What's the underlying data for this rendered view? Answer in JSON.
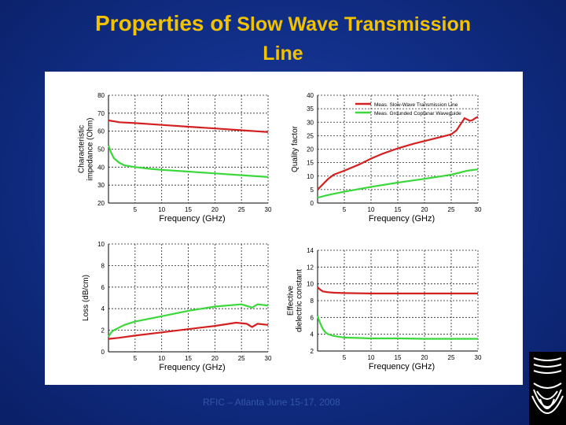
{
  "slide": {
    "title_part1": "Properties of",
    "title_part2": "Slow Wave Transmission",
    "title_line2": "Line",
    "footer": "RFIC – Atlanta June 15-17, 2008",
    "title_color": "#f2c200",
    "logo_icon": "wave-pattern-logo-icon"
  },
  "chart_data": [
    {
      "id": "impedance",
      "type": "line",
      "title": "",
      "xlabel": "Frequency (GHz)",
      "ylabel": "Characteristic impedance (Ohm)",
      "xlim": [
        0,
        30
      ],
      "ylim": [
        20,
        80
      ],
      "xticks": [
        5,
        10,
        15,
        20,
        25,
        30
      ],
      "yticks": [
        20,
        30,
        40,
        50,
        60,
        70,
        80
      ],
      "xtick_labels": [
        "5",
        "10",
        "15",
        "20",
        "25",
        "30"
      ],
      "ytick_labels": [
        "20",
        "30",
        "40",
        "50",
        "60",
        "70",
        "80"
      ],
      "grid": true,
      "series": [
        {
          "name": "Meas. Slow-Wave Transmission Line",
          "color": "#d42020",
          "x": [
            0,
            1,
            2,
            5,
            10,
            15,
            20,
            25,
            30
          ],
          "y": [
            66,
            65.5,
            65,
            64.5,
            63.5,
            62.5,
            61.5,
            60.5,
            59.5
          ]
        },
        {
          "name": "Meas. Grounded Coplanar Waveguide",
          "color": "#3bd83b",
          "x": [
            0,
            0.5,
            1,
            2,
            3,
            5,
            8,
            10,
            15,
            20,
            25,
            30
          ],
          "y": [
            52,
            48,
            45,
            42.5,
            41,
            40,
            39,
            38.5,
            37.5,
            36.5,
            35.5,
            34.5
          ]
        }
      ]
    },
    {
      "id": "quality",
      "type": "line",
      "title": "",
      "xlabel": "Frequency (GHz)",
      "ylabel": "Quality factor",
      "xlim": [
        0,
        30
      ],
      "ylim": [
        0,
        40
      ],
      "xticks": [
        5,
        10,
        15,
        20,
        25,
        30
      ],
      "yticks": [
        0,
        5,
        10,
        15,
        20,
        25,
        30,
        35,
        40
      ],
      "xtick_labels": [
        "5",
        "10",
        "15",
        "20",
        "25",
        "30"
      ],
      "ytick_labels": [
        "0",
        "5",
        "10",
        "15",
        "20",
        "25",
        "30",
        "35",
        "40"
      ],
      "grid": true,
      "legend": "top-right",
      "series": [
        {
          "name": "Meas. Slow-Wave Transmission Line",
          "color": "#d42020",
          "x": [
            0,
            1,
            2,
            3,
            5,
            8,
            10,
            12,
            15,
            18,
            20,
            22,
            24,
            25,
            26,
            27,
            27.5,
            28,
            28.5,
            29,
            29.5,
            30
          ],
          "y": [
            5,
            7,
            9,
            10.5,
            12,
            14.5,
            16.5,
            18.2,
            20.3,
            22,
            23,
            24,
            25,
            25.5,
            27,
            30,
            31.5,
            31,
            30.5,
            30.8,
            31.5,
            32
          ]
        },
        {
          "name": "Meas. Grounded Coplanar Waveguide",
          "color": "#3bd83b",
          "x": [
            0,
            2,
            5,
            10,
            15,
            20,
            25,
            28,
            30
          ],
          "y": [
            2,
            3,
            4.2,
            6,
            7.6,
            9,
            10.5,
            12,
            12.5
          ]
        }
      ]
    },
    {
      "id": "loss",
      "type": "line",
      "title": "",
      "xlabel": "Frequency (GHz)",
      "ylabel": "Loss (dB/cm)",
      "xlim": [
        0,
        30
      ],
      "ylim": [
        0,
        10
      ],
      "xticks": [
        5,
        10,
        15,
        20,
        25,
        30
      ],
      "yticks": [
        0,
        2,
        4,
        6,
        8,
        10
      ],
      "xtick_labels": [
        "5",
        "10",
        "15",
        "20",
        "25",
        "30"
      ],
      "ytick_labels": [
        "0",
        "2",
        "4",
        "6",
        "8",
        "10"
      ],
      "grid": true,
      "series": [
        {
          "name": "Meas. Slow-Wave Transmission Line",
          "color": "#d42020",
          "x": [
            0,
            2,
            5,
            10,
            15,
            20,
            24,
            26,
            27,
            28,
            30
          ],
          "y": [
            1.2,
            1.3,
            1.5,
            1.8,
            2.1,
            2.4,
            2.7,
            2.6,
            2.3,
            2.6,
            2.5
          ]
        },
        {
          "name": "Meas. Grounded Coplanar Waveguide",
          "color": "#3bd83b",
          "x": [
            0,
            0.5,
            1,
            3,
            5,
            10,
            15,
            20,
            25,
            27,
            28,
            30
          ],
          "y": [
            1.4,
            1.8,
            2.0,
            2.5,
            2.8,
            3.3,
            3.8,
            4.2,
            4.4,
            4.1,
            4.4,
            4.3
          ]
        }
      ]
    },
    {
      "id": "permittivity",
      "type": "line",
      "title": "",
      "xlabel": "Frequency (GHz)",
      "ylabel": "Effective dielectric constant",
      "xlim": [
        0,
        30
      ],
      "ylim": [
        2,
        14
      ],
      "xticks": [
        5,
        10,
        15,
        20,
        25,
        30
      ],
      "yticks": [
        2,
        4,
        6,
        8,
        10,
        12,
        14
      ],
      "xtick_labels": [
        "5",
        "10",
        "15",
        "20",
        "25",
        "30"
      ],
      "ytick_labels": [
        "2",
        "4",
        "6",
        "8",
        "10",
        "12",
        "14"
      ],
      "grid": true,
      "series": [
        {
          "name": "Meas. Slow-Wave Transmission Line",
          "color": "#d42020",
          "x": [
            0,
            0.5,
            1,
            2,
            3,
            5,
            10,
            15,
            20,
            25,
            30
          ],
          "y": [
            9.6,
            9.3,
            9.1,
            9.0,
            8.95,
            8.9,
            8.85,
            8.85,
            8.85,
            8.85,
            8.85
          ]
        },
        {
          "name": "Meas. Grounded Coplanar Waveguide",
          "color": "#3bd83b",
          "x": [
            0,
            0.3,
            0.7,
            1,
            1.5,
            2,
            3,
            5,
            8,
            10,
            15,
            20,
            25,
            30
          ],
          "y": [
            6.2,
            5.6,
            5.0,
            4.6,
            4.2,
            4.0,
            3.8,
            3.6,
            3.55,
            3.5,
            3.5,
            3.45,
            3.45,
            3.45
          ]
        }
      ]
    }
  ]
}
